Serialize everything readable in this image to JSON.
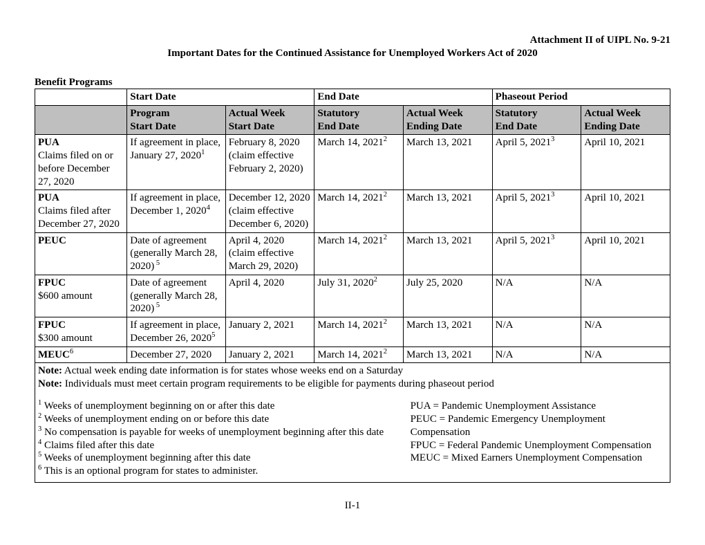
{
  "header": {
    "attachment": "Attachment II of UIPL No. 9-21",
    "title": "Important Dates for the Continued Assistance for Unemployed Workers Act of 2020"
  },
  "section_title": "Benefit Programs",
  "top_headers": {
    "blank": "",
    "start": "Start Date",
    "end": "End Date",
    "phase": "Phaseout Period"
  },
  "sub_headers": {
    "blank": "",
    "program_start": "Program Start Date",
    "actual_start": "Actual Week Start Date",
    "statutory_end": "Statutory End Date",
    "actual_end": "Actual Week Ending Date",
    "statutory_phase": "Statutory End Date",
    "actual_phase": "Actual Week Ending Date"
  },
  "rows": [
    {
      "program_html": "<b>PUA</b><br>Claims filed on or before December 27, 2020",
      "prog_start_html": "If agreement in place, January 27, 2020<span class='sup'>1</span>",
      "actual_start_html": "February 8, 2020 (claim effective February 2, 2020)",
      "stat_end_html": "March 14, 2021<span class='sup'>2</span>",
      "actual_end_html": "March 13, 2021",
      "stat_phase_html": "April 5, 2021<span class='sup'>3</span>",
      "actual_phase_html": "April 10, 2021"
    },
    {
      "program_html": "<b>PUA</b><br>Claims filed after December 27, 2020",
      "prog_start_html": "If agreement in place,<br>December 1, 2020<span class='sup'>4</span>",
      "actual_start_html": "December 12, 2020<br>(claim effective December 6, 2020)",
      "stat_end_html": "March 14, 2021<span class='sup'>2</span>",
      "actual_end_html": "March 13, 2021",
      "stat_phase_html": "April 5, 2021<span class='sup'>3</span>",
      "actual_phase_html": "April 10, 2021"
    },
    {
      "program_html": "<b>PEUC</b>",
      "prog_start_html": "Date of agreement (generally March 28, 2020)<span class='sup'> 5</span>",
      "actual_start_html": "April 4, 2020 (claim effective March 29, 2020)",
      "stat_end_html": "March 14, 2021<span class='sup'>2</span>",
      "actual_end_html": "March 13, 2021",
      "stat_phase_html": "April 5, 2021<span class='sup'>3</span>",
      "actual_phase_html": "April 10, 2021"
    },
    {
      "program_html": "<b>FPUC</b><br>$600 amount",
      "prog_start_html": "Date of agreement (generally March 28, 2020)<span class='sup'> 5</span>",
      "actual_start_html": "April 4, 2020",
      "stat_end_html": "July 31, 2020<span class='sup'>2</span>",
      "actual_end_html": "July 25, 2020",
      "stat_phase_html": "N/A",
      "actual_phase_html": "N/A"
    },
    {
      "program_html": "<b>FPUC</b><br>$300 amount",
      "prog_start_html": "If agreement in place, December 26, 2020<span class='sup'>5</span>",
      "actual_start_html": "January 2, 2021",
      "stat_end_html": "March 14, 2021<span class='sup'>2</span>",
      "actual_end_html": "March 13, 2021",
      "stat_phase_html": "N/A",
      "actual_phase_html": "N/A"
    },
    {
      "program_html": "<b>MEUC</b><span class='sup'>6</span>",
      "prog_start_html": "December 27, 2020",
      "actual_start_html": "January 2, 2021",
      "stat_end_html": "March 14, 2021<span class='sup'>2</span>",
      "actual_end_html": "March 13, 2021",
      "stat_phase_html": "N/A",
      "actual_phase_html": "N/A"
    }
  ],
  "notes": {
    "note1_label": "Note:",
    "note1_text": " Actual week ending date information is for states whose weeks end on a Saturday",
    "note2_label": "Note:",
    "note2_text": " Individuals must meet certain program requirements to be eligible for payments during phaseout period"
  },
  "footnotes_left": [
    "<span class='sup'>1</span> Weeks of unemployment beginning on or after this date",
    "<span class='sup'>2</span> Weeks of unemployment ending on or before this date",
    "<span class='sup'>3</span> No compensation is payable for weeks of unemployment beginning after this date",
    "<span class='sup'>4</span> Claims filed after this date",
    "<span class='sup'>5</span> Weeks of unemployment beginning after this date",
    "<span class='sup'>6</span> This is an optional program for states to administer."
  ],
  "footnotes_right": [
    "PUA = Pandemic Unemployment Assistance",
    "PEUC = Pandemic Emergency Unemployment Compensation",
    "FPUC = Federal Pandemic Unemployment Compensation",
    "MEUC = Mixed Earners Unemployment Compensation"
  ],
  "page_number": "II-1"
}
